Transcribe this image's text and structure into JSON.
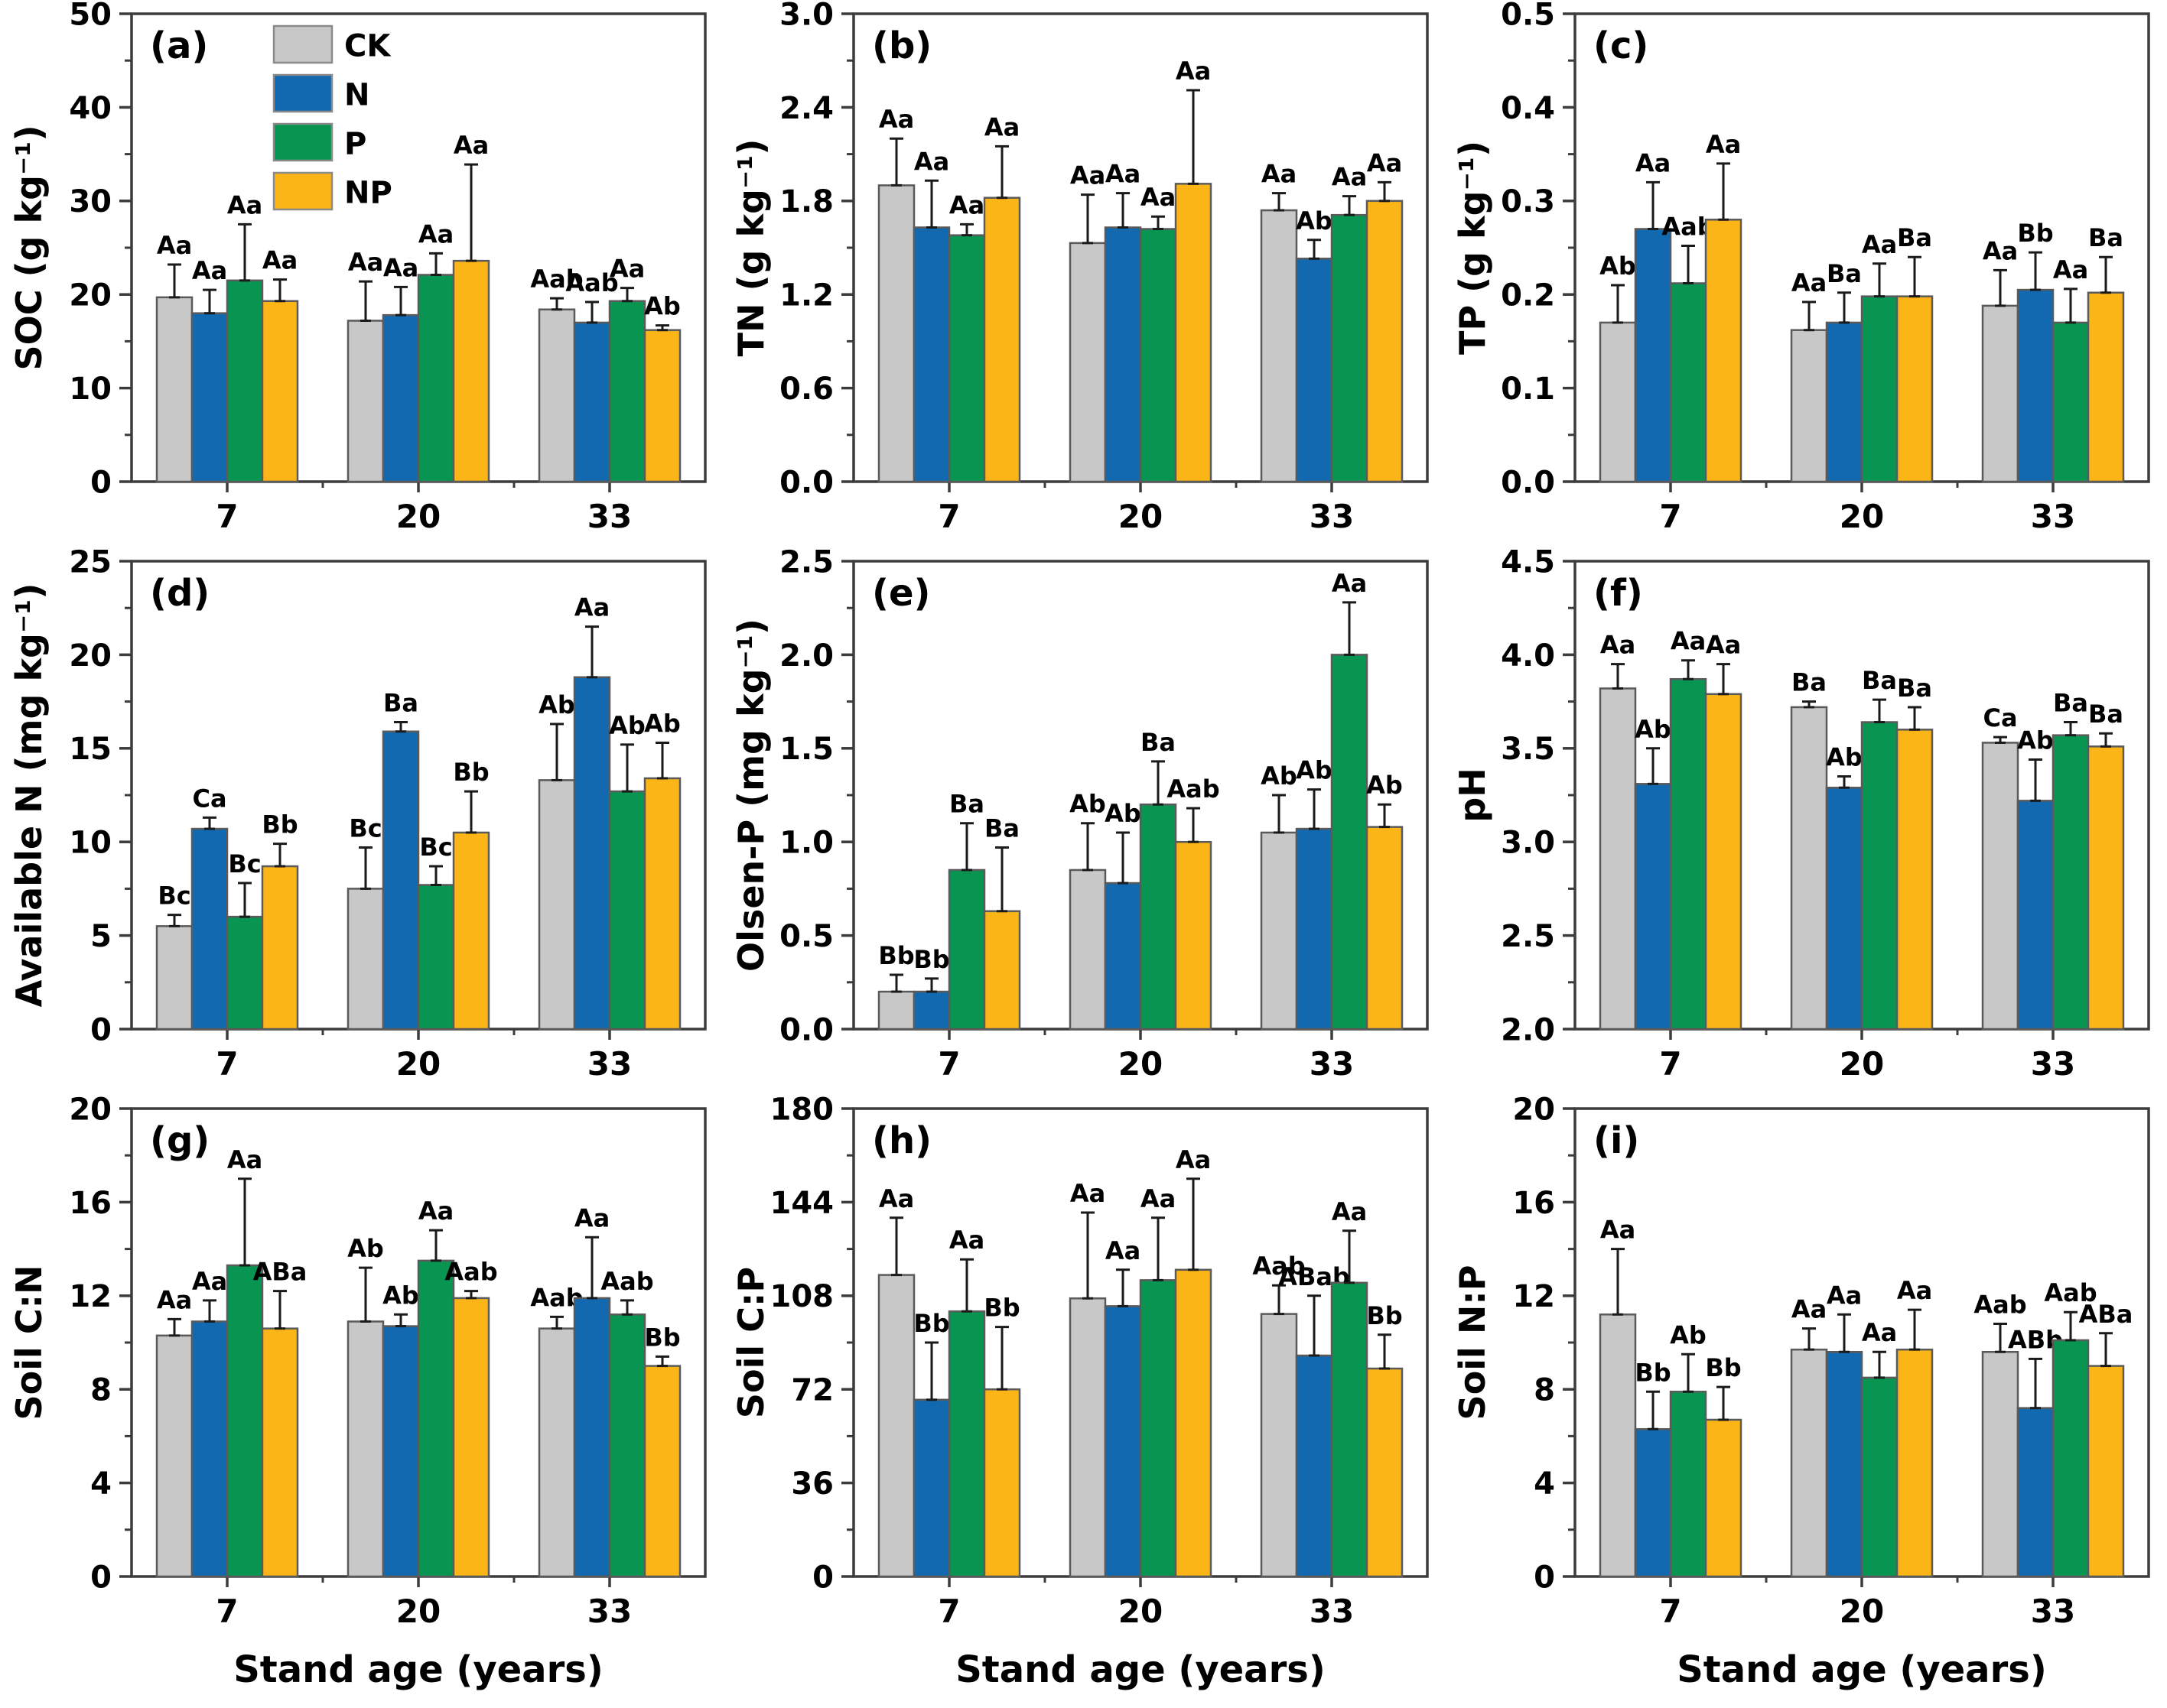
{
  "figure": {
    "xlabel": "Stand age (years)",
    "categories": [
      "7",
      "20",
      "33"
    ],
    "treatments": [
      "CK",
      "N",
      "P",
      "NP"
    ],
    "colors": {
      "CK": "#c8c8c8",
      "N": "#1269b0",
      "P": "#089552",
      "NP": "#fcb516",
      "bar_border": "#5a5a5a",
      "error": "#1a1a1a",
      "axis": "#3c3c3c",
      "text": "#000000"
    }
  },
  "chart_data": {
    "type": "bar",
    "x_categories": [
      "7",
      "20",
      "33"
    ],
    "legend_position": "top-left-panel-a",
    "grid": false,
    "panels": [
      {
        "tag": "(a)",
        "ylabel": "SOC (g kg⁻¹)",
        "ylim": [
          0,
          50
        ],
        "ytick_step": 10,
        "minor_step": 5,
        "decimals": 0,
        "legend": true,
        "xlabel": "",
        "series": [
          {
            "name": "CK",
            "values": [
              19.7,
              17.2,
              18.4
            ],
            "errors": [
              3.5,
              4.2,
              1.2
            ],
            "labels": [
              "Aa",
              "Aa",
              "Aab"
            ]
          },
          {
            "name": "N",
            "values": [
              18.0,
              17.8,
              17.0
            ],
            "errors": [
              2.5,
              3.0,
              2.2
            ],
            "labels": [
              "Aa",
              "Aa",
              "Aab"
            ]
          },
          {
            "name": "P",
            "values": [
              21.5,
              22.1,
              19.3
            ],
            "errors": [
              6.0,
              2.3,
              1.4
            ],
            "labels": [
              "Aa",
              "Aa",
              "Aa"
            ]
          },
          {
            "name": "NP",
            "values": [
              19.3,
              23.6,
              16.2
            ],
            "errors": [
              2.3,
              10.3,
              0.5
            ],
            "labels": [
              "Aa",
              "Aa",
              "Ab"
            ]
          }
        ]
      },
      {
        "tag": "(b)",
        "ylabel": "TN (g kg⁻¹)",
        "ylim": [
          0,
          3.0
        ],
        "ytick_step": 0.6,
        "minor_step": 0.3,
        "decimals": 1,
        "legend": false,
        "xlabel": "",
        "series": [
          {
            "name": "CK",
            "values": [
              1.9,
              1.53,
              1.74
            ],
            "errors": [
              0.3,
              0.31,
              0.11
            ],
            "labels": [
              "Aa",
              "Aa",
              "Aa"
            ]
          },
          {
            "name": "N",
            "values": [
              1.63,
              1.63,
              1.43
            ],
            "errors": [
              0.3,
              0.22,
              0.12
            ],
            "labels": [
              "Aa",
              "Aa",
              "Ab"
            ]
          },
          {
            "name": "P",
            "values": [
              1.58,
              1.62,
              1.71
            ],
            "errors": [
              0.07,
              0.08,
              0.12
            ],
            "labels": [
              "Aa",
              "Aa",
              "Aa"
            ]
          },
          {
            "name": "NP",
            "values": [
              1.82,
              1.91,
              1.8
            ],
            "errors": [
              0.33,
              0.6,
              0.12
            ],
            "labels": [
              "Aa",
              "Aa",
              "Aa"
            ]
          }
        ]
      },
      {
        "tag": "(c)",
        "ylabel": "TP (g kg⁻¹)",
        "ylim": [
          0,
          0.5
        ],
        "ytick_step": 0.1,
        "minor_step": 0.05,
        "decimals": 1,
        "legend": false,
        "xlabel": "",
        "series": [
          {
            "name": "CK",
            "values": [
              0.17,
              0.162,
              0.188
            ],
            "errors": [
              0.04,
              0.03,
              0.038
            ],
            "labels": [
              "Ab",
              "Aa",
              "Aa"
            ]
          },
          {
            "name": "N",
            "values": [
              0.27,
              0.17,
              0.205
            ],
            "errors": [
              0.05,
              0.032,
              0.04
            ],
            "labels": [
              "Aa",
              "Ba",
              "Bb"
            ]
          },
          {
            "name": "P",
            "values": [
              0.212,
              0.198,
              0.17
            ],
            "errors": [
              0.04,
              0.035,
              0.036
            ],
            "labels": [
              "Aab",
              "Aa",
              "Aa"
            ]
          },
          {
            "name": "NP",
            "values": [
              0.28,
              0.198,
              0.202
            ],
            "errors": [
              0.06,
              0.042,
              0.038
            ],
            "labels": [
              "Aa",
              "Ba",
              "Ba"
            ]
          }
        ]
      },
      {
        "tag": "(d)",
        "ylabel": "Available N (mg kg⁻¹)",
        "ylim": [
          0,
          25
        ],
        "ytick_step": 5,
        "minor_step": 2.5,
        "decimals": 0,
        "legend": false,
        "xlabel": "",
        "series": [
          {
            "name": "CK",
            "values": [
              5.5,
              7.5,
              13.3
            ],
            "errors": [
              0.6,
              2.2,
              3.0
            ],
            "labels": [
              "Bc",
              "Bc",
              "Ab"
            ]
          },
          {
            "name": "N",
            "values": [
              10.7,
              15.9,
              18.8
            ],
            "errors": [
              0.6,
              0.5,
              2.7
            ],
            "labels": [
              "Ca",
              "Ba",
              "Aa"
            ]
          },
          {
            "name": "P",
            "values": [
              6.0,
              7.7,
              12.7
            ],
            "errors": [
              1.8,
              1.0,
              2.5
            ],
            "labels": [
              "Bc",
              "Bc",
              "Ab"
            ]
          },
          {
            "name": "NP",
            "values": [
              8.7,
              10.5,
              13.4
            ],
            "errors": [
              1.2,
              2.2,
              1.9
            ],
            "labels": [
              "Bb",
              "Bb",
              "Ab"
            ]
          }
        ]
      },
      {
        "tag": "(e)",
        "ylabel": "Olsen-P (mg kg⁻¹)",
        "ylim": [
          0,
          2.5
        ],
        "ytick_step": 0.5,
        "minor_step": 0.25,
        "decimals": 1,
        "legend": false,
        "xlabel": "",
        "series": [
          {
            "name": "CK",
            "values": [
              0.2,
              0.85,
              1.05
            ],
            "errors": [
              0.09,
              0.25,
              0.2
            ],
            "labels": [
              "Bb",
              "Ab",
              "Ab"
            ]
          },
          {
            "name": "N",
            "values": [
              0.2,
              0.78,
              1.07
            ],
            "errors": [
              0.07,
              0.27,
              0.21
            ],
            "labels": [
              "Bb",
              "Ab",
              "Ab"
            ]
          },
          {
            "name": "P",
            "values": [
              0.85,
              1.2,
              2.0
            ],
            "errors": [
              0.25,
              0.23,
              0.28
            ],
            "labels": [
              "Ba",
              "Ba",
              "Aa"
            ]
          },
          {
            "name": "NP",
            "values": [
              0.63,
              1.0,
              1.08
            ],
            "errors": [
              0.34,
              0.18,
              0.12
            ],
            "labels": [
              "Ba",
              "Aab",
              "Ab"
            ]
          }
        ]
      },
      {
        "tag": "(f)",
        "ylabel": "pH",
        "ylim": [
          2.0,
          4.5
        ],
        "ytick_step": 0.5,
        "minor_step": 0.25,
        "decimals": 1,
        "legend": false,
        "xlabel": "",
        "series": [
          {
            "name": "CK",
            "values": [
              3.82,
              3.72,
              3.53
            ],
            "errors": [
              0.13,
              0.03,
              0.03
            ],
            "labels": [
              "Aa",
              "Ba",
              "Ca"
            ]
          },
          {
            "name": "N",
            "values": [
              3.31,
              3.29,
              3.22
            ],
            "errors": [
              0.19,
              0.06,
              0.22
            ],
            "labels": [
              "Ab",
              "Ab",
              "Ab"
            ]
          },
          {
            "name": "P",
            "values": [
              3.87,
              3.64,
              3.57
            ],
            "errors": [
              0.1,
              0.12,
              0.07
            ],
            "labels": [
              "Aa",
              "Ba",
              "Ba"
            ]
          },
          {
            "name": "NP",
            "values": [
              3.79,
              3.6,
              3.51
            ],
            "errors": [
              0.16,
              0.12,
              0.07
            ],
            "labels": [
              "Aa",
              "Ba",
              "Ba"
            ]
          }
        ]
      },
      {
        "tag": "(g)",
        "ylabel": "Soil C:N",
        "ylim": [
          0,
          20
        ],
        "ytick_step": 4,
        "minor_step": 2,
        "decimals": 0,
        "legend": false,
        "xlabel": "Stand age (years)",
        "series": [
          {
            "name": "CK",
            "values": [
              10.3,
              10.9,
              10.6
            ],
            "errors": [
              0.7,
              2.3,
              0.5
            ],
            "labels": [
              "Aa",
              "Ab",
              "Aab"
            ]
          },
          {
            "name": "N",
            "values": [
              10.9,
              10.7,
              11.9
            ],
            "errors": [
              0.9,
              0.5,
              2.6
            ],
            "labels": [
              "Aa",
              "Ab",
              "Aa"
            ]
          },
          {
            "name": "P",
            "values": [
              13.3,
              13.5,
              11.2
            ],
            "errors": [
              3.7,
              1.3,
              0.6
            ],
            "labels": [
              "Aa",
              "Aa",
              "Aab"
            ]
          },
          {
            "name": "NP",
            "values": [
              10.6,
              11.9,
              9.0
            ],
            "errors": [
              1.6,
              0.3,
              0.4
            ],
            "labels": [
              "ABa",
              "Aab",
              "Bb"
            ]
          }
        ]
      },
      {
        "tag": "(h)",
        "ylabel": "Soil C:P",
        "ylim": [
          0,
          180
        ],
        "ytick_step": 36,
        "minor_step": 18,
        "decimals": 0,
        "legend": false,
        "xlabel": "Stand age (years)",
        "series": [
          {
            "name": "CK",
            "values": [
              116,
              107,
              101
            ],
            "errors": [
              22,
              33,
              11
            ],
            "labels": [
              "Aa",
              "Aa",
              "Aab"
            ]
          },
          {
            "name": "N",
            "values": [
              68,
              104,
              85
            ],
            "errors": [
              22,
              14,
              23
            ],
            "labels": [
              "Bb",
              "Aa",
              "ABab"
            ]
          },
          {
            "name": "P",
            "values": [
              102,
              114,
              113
            ],
            "errors": [
              20,
              24,
              20
            ],
            "labels": [
              "Aa",
              "Aa",
              "Aa"
            ]
          },
          {
            "name": "NP",
            "values": [
              72,
              118,
              80
            ],
            "errors": [
              24,
              35,
              13
            ],
            "labels": [
              "Bb",
              "Aa",
              "Bb"
            ]
          }
        ]
      },
      {
        "tag": "(i)",
        "ylabel": "Soil N:P",
        "ylim": [
          0,
          20
        ],
        "ytick_step": 4,
        "minor_step": 2,
        "decimals": 0,
        "legend": false,
        "xlabel": "Stand age (years)",
        "series": [
          {
            "name": "CK",
            "values": [
              11.2,
              9.7,
              9.6
            ],
            "errors": [
              2.8,
              0.9,
              1.2
            ],
            "labels": [
              "Aa",
              "Aa",
              "Aab"
            ]
          },
          {
            "name": "N",
            "values": [
              6.3,
              9.6,
              7.2
            ],
            "errors": [
              1.6,
              1.6,
              2.1
            ],
            "labels": [
              "Bb",
              "Aa",
              "ABb"
            ]
          },
          {
            "name": "P",
            "values": [
              7.9,
              8.5,
              10.1
            ],
            "errors": [
              1.6,
              1.1,
              1.2
            ],
            "labels": [
              "Ab",
              "Aa",
              "Aab"
            ]
          },
          {
            "name": "NP",
            "values": [
              6.7,
              9.7,
              9.0
            ],
            "errors": [
              1.4,
              1.7,
              1.4
            ],
            "labels": [
              "Bb",
              "Aa",
              "ABa"
            ]
          }
        ]
      }
    ]
  }
}
